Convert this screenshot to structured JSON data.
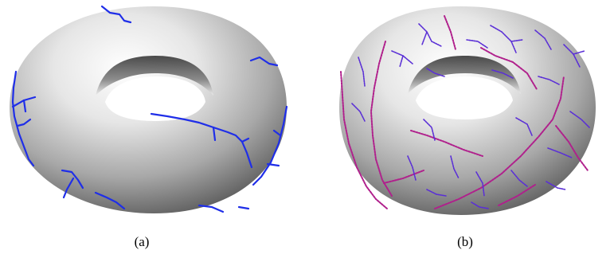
{
  "panels": [
    {
      "id": "a",
      "caption": "(a)",
      "line_color": "#1f2ee8"
    },
    {
      "id": "b",
      "caption": "(b)",
      "line_color": "#5a2fd6",
      "secondary_color": "#b0208c"
    }
  ]
}
